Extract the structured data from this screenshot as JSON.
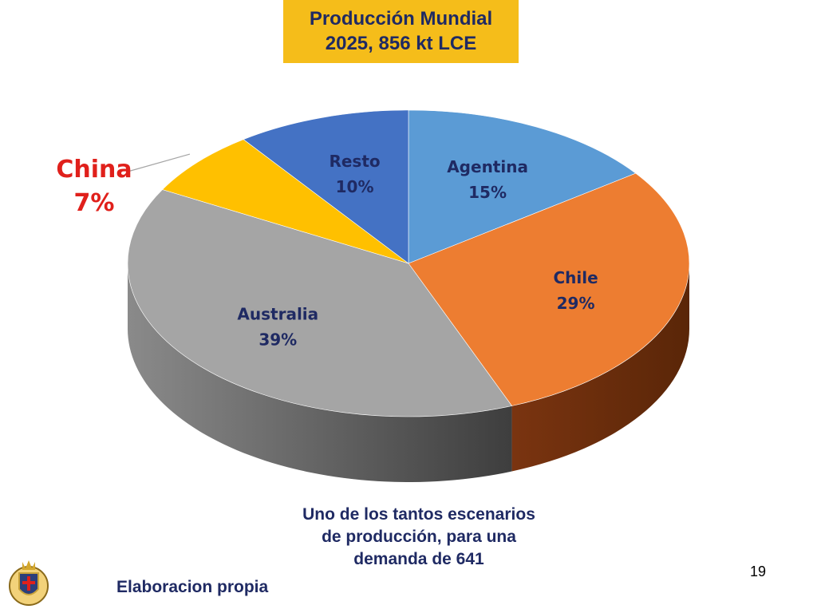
{
  "title": {
    "line1": "Producción Mundial",
    "line2": "2025, 856 kt LCE"
  },
  "chart_data": {
    "type": "pie",
    "title": "Producción Mundial 2025, 856 kt LCE",
    "slices": [
      {
        "name": "Agentina",
        "value": 15,
        "label": "15%",
        "color": "#5b9bd5"
      },
      {
        "name": "Chile",
        "value": 29,
        "label": "29%",
        "color": "#ed7d31"
      },
      {
        "name": "Australia",
        "value": 39,
        "label": "39%",
        "color": "#a5a5a5"
      },
      {
        "name": "China",
        "value": 7,
        "label": "7%",
        "color": "#ffc000"
      },
      {
        "name": "Resto",
        "value": 10,
        "label": "10%",
        "color": "#4472c4"
      }
    ],
    "label_colors": {
      "default": "#1f2a63",
      "China": "#e0201b"
    }
  },
  "caption": {
    "line1": "Uno de los tantos escenarios",
    "line2": "de producción, para una",
    "line3": "demanda de 641"
  },
  "source": "Elaboracion propia",
  "page_number": "19",
  "logo_icon": "shield-crest-icon"
}
